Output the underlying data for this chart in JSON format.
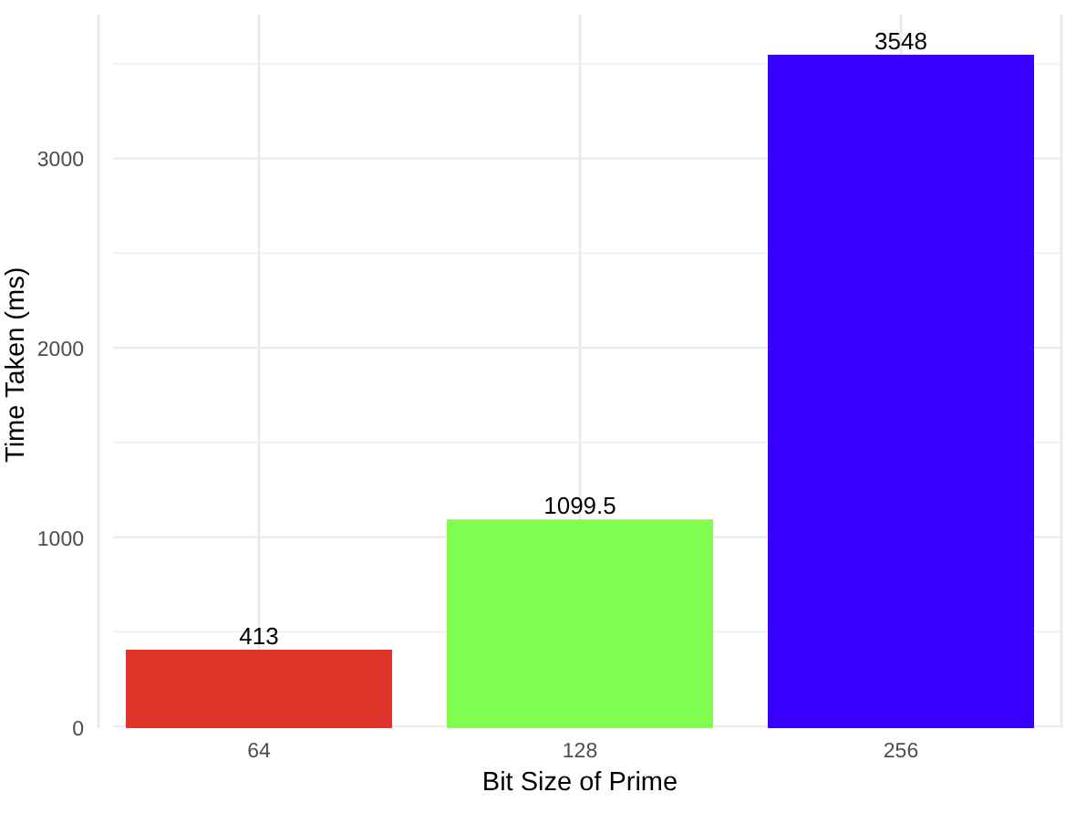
{
  "chart_data": {
    "type": "bar",
    "xlabel": "Bit Size of Prime",
    "ylabel": "Time Taken (ms)",
    "categories": [
      "64",
      "128",
      "256"
    ],
    "values": [
      413,
      1099.5,
      3548
    ],
    "colors": [
      "#e0352a",
      "#80ff50",
      "#3a00ff"
    ],
    "ylim": [
      0,
      3760
    ],
    "yticks": [
      0,
      {
        "value": 500,
        "label": null
      },
      1000,
      {
        "value": 1500,
        "label": null
      },
      2000,
      {
        "value": 2500,
        "label": null
      },
      3000,
      {
        "value": 3500,
        "label": null
      }
    ],
    "grid": true,
    "data_labels": true
  }
}
